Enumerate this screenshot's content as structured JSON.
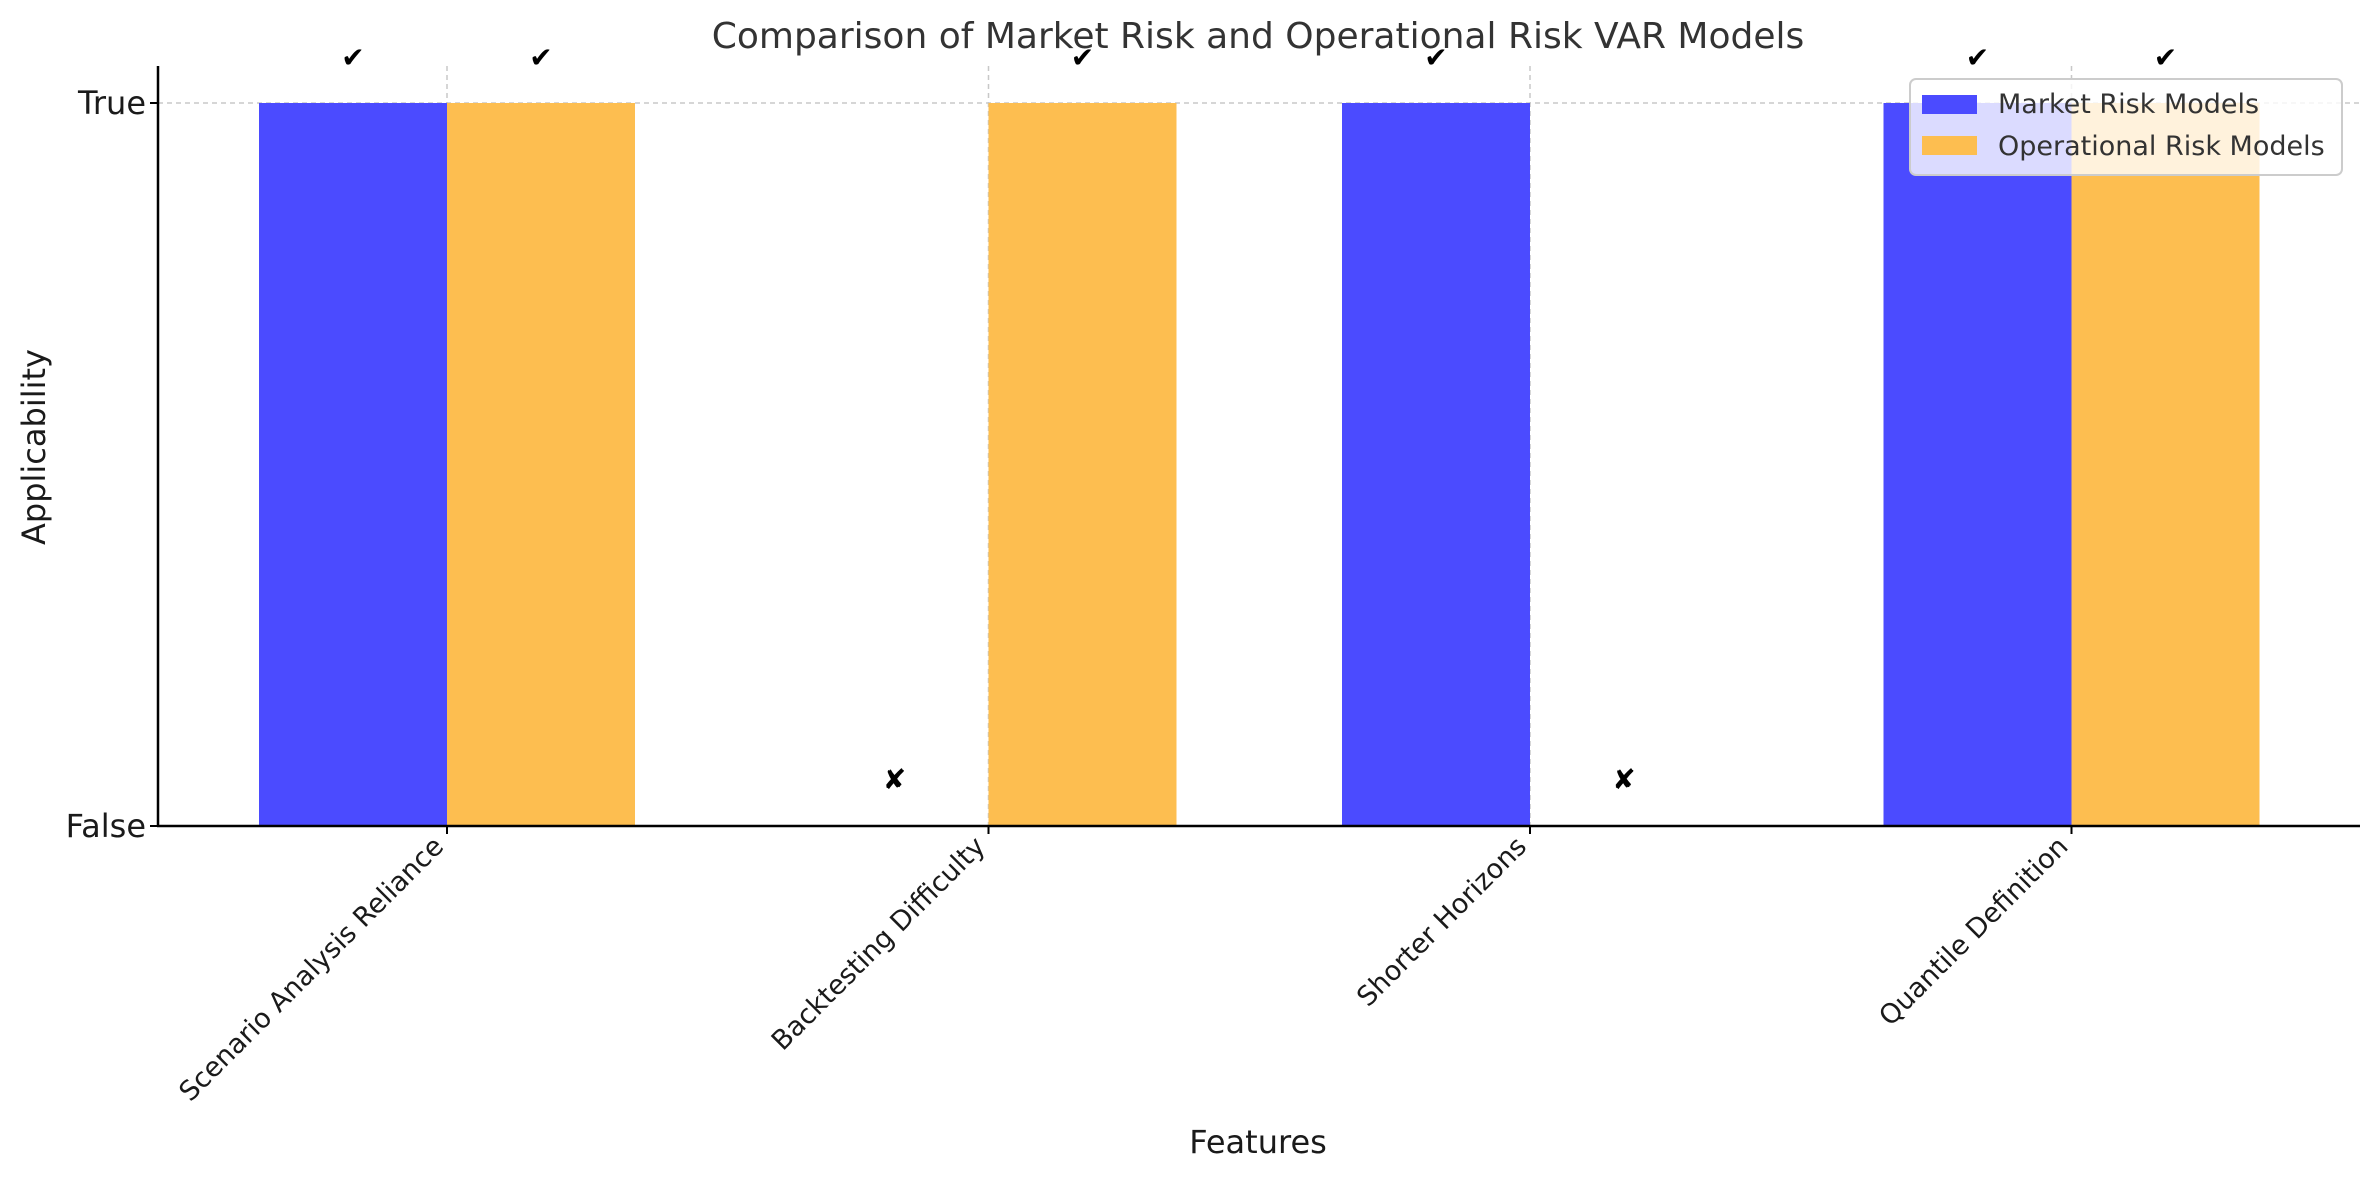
{
  "chart_data": {
    "type": "bar",
    "title": "Comparison of Market Risk and Operational Risk VAR Models",
    "xlabel": "Features",
    "ylabel": "Applicability",
    "categories": [
      "Scenario Analysis Reliance",
      "Backtesting Difficulty",
      "Shorter Horizons",
      "Quantile Definition"
    ],
    "y_tick_labels": [
      "False",
      "True"
    ],
    "ylim": [
      0,
      1
    ],
    "grid": true,
    "legend_position": "top-right",
    "series": [
      {
        "name": "Market Risk Models",
        "color": "#4b4bff",
        "values": [
          1,
          0,
          1,
          1
        ],
        "marks": [
          "✔",
          "✘",
          "✔",
          "✔"
        ]
      },
      {
        "name": "Operational Risk Models",
        "color": "#fdbe50",
        "values": [
          1,
          1,
          0,
          1
        ],
        "marks": [
          "✔",
          "✔",
          "✘",
          "✔"
        ]
      }
    ]
  }
}
